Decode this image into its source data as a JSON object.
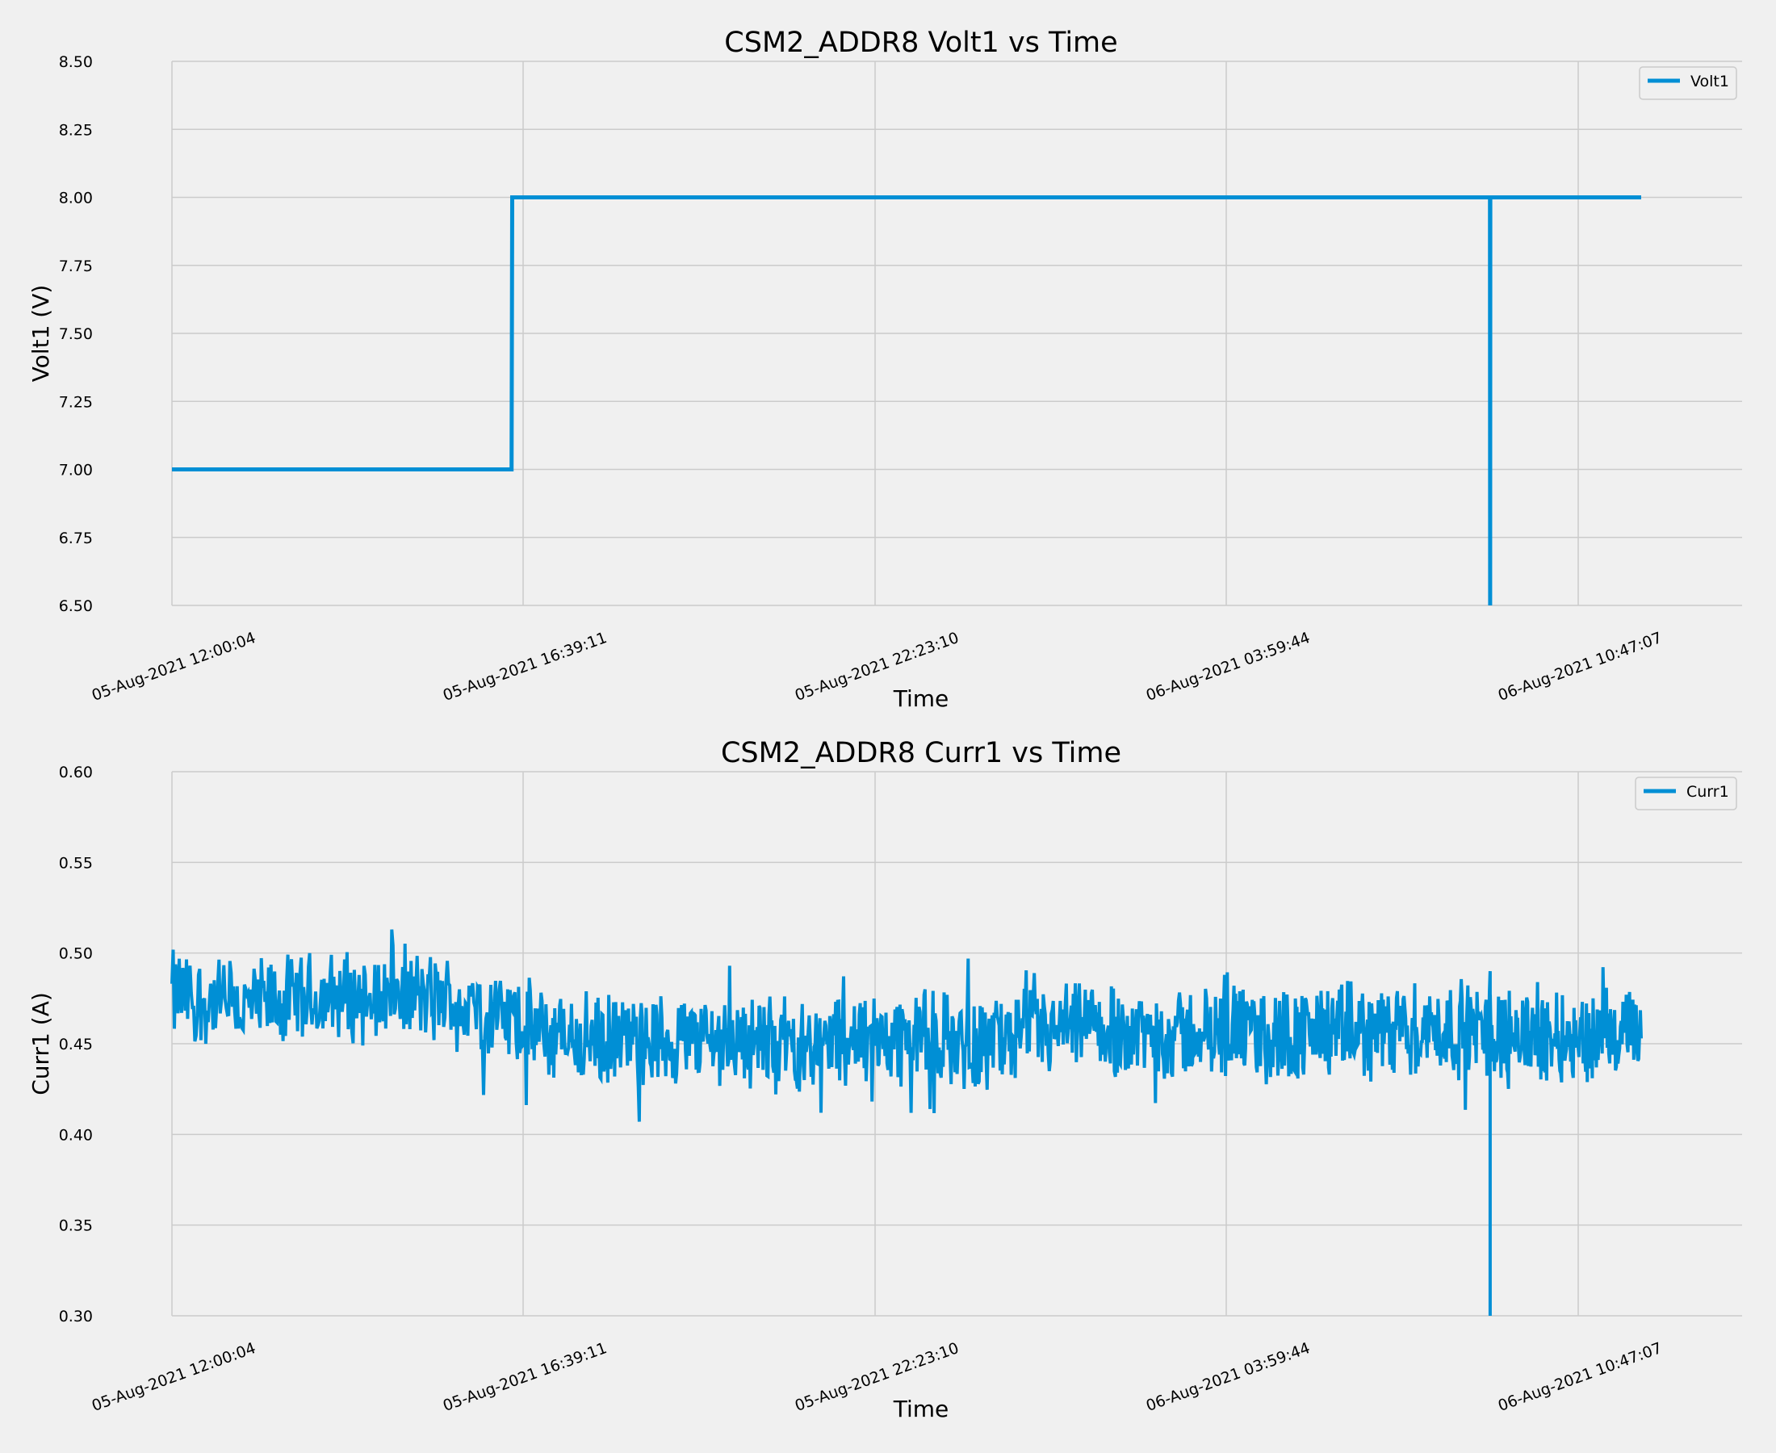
{
  "figure": {
    "background": "#f0f0f0"
  },
  "chart_data": [
    {
      "type": "line",
      "title": "CSM2_ADDR8 Volt1 vs Time",
      "xlabel": "Time",
      "ylabel": "Volt1 (V)",
      "x_tick_labels": [
        "05-Aug-2021 12:00:04",
        "05-Aug-2021 16:39:11",
        "05-Aug-2021 22:23:10",
        "06-Aug-2021 03:59:44",
        "06-Aug-2021 10:47:07"
      ],
      "y_ticks": [
        "6.50",
        "6.75",
        "7.00",
        "7.25",
        "7.50",
        "7.75",
        "8.00",
        "8.25",
        "8.50"
      ],
      "ylim": [
        6.5,
        8.5
      ],
      "grid": true,
      "legend_position": "top-right",
      "series": [
        {
          "name": "Volt1",
          "color": "#008fd5",
          "points": [
            [
              "05-Aug-2021 12:00:04",
              7.0
            ],
            [
              "05-Aug-2021 16:30:00",
              7.0
            ],
            [
              "05-Aug-2021 16:30:30",
              8.0
            ],
            [
              "06-Aug-2021 09:05:00",
              8.0
            ],
            [
              "06-Aug-2021 09:05:10",
              6.5
            ],
            [
              "06-Aug-2021 09:05:20",
              8.0
            ],
            [
              "06-Aug-2021 12:00:00",
              8.0
            ]
          ]
        }
      ]
    },
    {
      "type": "line",
      "title": "CSM2_ADDR8 Curr1 vs Time",
      "xlabel": "Time",
      "ylabel": "Curr1 (A)",
      "x_tick_labels": [
        "05-Aug-2021 12:00:04",
        "05-Aug-2021 16:39:11",
        "05-Aug-2021 22:23:10",
        "06-Aug-2021 03:59:44",
        "06-Aug-2021 10:47:07"
      ],
      "y_ticks": [
        "0.30",
        "0.35",
        "0.40",
        "0.45",
        "0.50",
        "0.55",
        "0.60"
      ],
      "ylim": [
        0.3,
        0.6
      ],
      "grid": true,
      "legend_position": "top-right",
      "series": [
        {
          "name": "Curr1",
          "color": "#008fd5",
          "summary_points": [
            [
              "05-Aug-2021 12:00:04",
              0.477
            ],
            [
              "05-Aug-2021 13:00:00",
              0.47
            ],
            [
              "05-Aug-2021 14:00:00",
              0.475
            ],
            [
              "05-Aug-2021 15:00:00",
              0.478
            ],
            [
              "05-Aug-2021 16:00:00",
              0.47
            ],
            [
              "05-Aug-2021 17:00:00",
              0.455
            ],
            [
              "05-Aug-2021 18:00:00",
              0.45
            ],
            [
              "05-Aug-2021 19:00:00",
              0.452
            ],
            [
              "05-Aug-2021 20:00:00",
              0.453
            ],
            [
              "05-Aug-2021 21:00:00",
              0.45
            ],
            [
              "05-Aug-2021 22:00:00",
              0.452
            ],
            [
              "05-Aug-2021 23:00:00",
              0.455
            ],
            [
              "06-Aug-2021 00:00:00",
              0.45
            ],
            [
              "06-Aug-2021 01:00:00",
              0.455
            ],
            [
              "06-Aug-2021 02:00:00",
              0.458
            ],
            [
              "06-Aug-2021 03:00:00",
              0.455
            ],
            [
              "06-Aug-2021 04:00:00",
              0.456
            ],
            [
              "06-Aug-2021 05:00:00",
              0.455
            ],
            [
              "06-Aug-2021 06:00:00",
              0.457
            ],
            [
              "06-Aug-2021 07:00:00",
              0.456
            ],
            [
              "06-Aug-2021 08:00:00",
              0.458
            ],
            [
              "06-Aug-2021 09:00:00",
              0.457
            ],
            [
              "06-Aug-2021 10:00:00",
              0.455
            ],
            [
              "06-Aug-2021 11:00:00",
              0.453
            ],
            [
              "06-Aug-2021 12:00:00",
              0.455
            ]
          ],
          "noise_range": 0.025,
          "dropout": [
            "06-Aug-2021 09:05:10",
            0.3
          ],
          "observed_max": 0.513,
          "observed_min": 0.403
        }
      ]
    }
  ]
}
